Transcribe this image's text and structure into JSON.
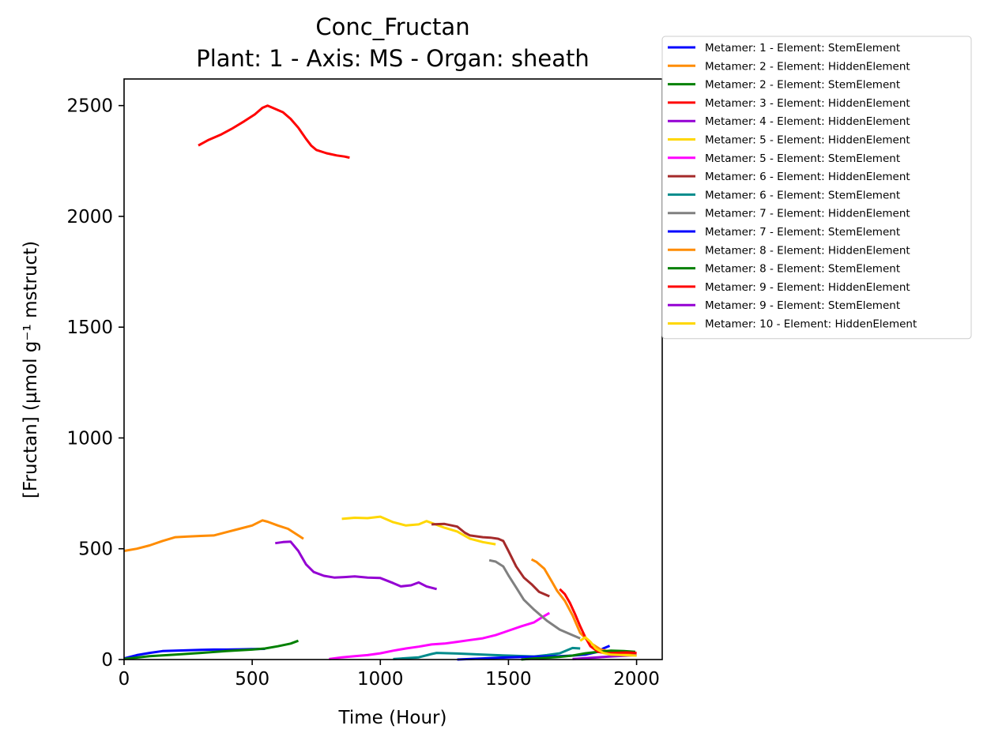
{
  "chart_data": {
    "type": "line",
    "title": "Conc_Fructan",
    "subtitle": "Plant: 1 - Axis: MS - Organ: sheath",
    "xlabel": "Time (Hour)",
    "ylabel": "[Fructan] (µmol g⁻¹ mstruct)",
    "xlim": [
      0,
      2100
    ],
    "ylim": [
      0,
      2620
    ],
    "xticks": [
      0,
      500,
      1000,
      1500,
      2000
    ],
    "yticks": [
      0,
      500,
      1000,
      1500,
      2000,
      2500
    ],
    "grid": false,
    "legend_position": "outside-top-right",
    "series": [
      {
        "name": "Metamer: 1 - Element: StemElement",
        "color": "#0000ff",
        "x": [
          0,
          50,
          100,
          150,
          200,
          250,
          300,
          350,
          400,
          450,
          500,
          550
        ],
        "y": [
          5,
          20,
          30,
          38,
          40,
          42,
          44,
          45,
          45,
          46,
          47,
          48
        ]
      },
      {
        "name": "Metamer: 2 - Element: HiddenElement",
        "color": "#ff8c00",
        "x": [
          0,
          50,
          100,
          150,
          200,
          250,
          300,
          350,
          400,
          450,
          500,
          540,
          560,
          600,
          640,
          680,
          700
        ],
        "y": [
          490,
          500,
          515,
          535,
          552,
          555,
          558,
          560,
          575,
          590,
          605,
          628,
          622,
          605,
          590,
          560,
          545
        ]
      },
      {
        "name": "Metamer: 2 - Element: StemElement",
        "color": "#008000",
        "x": [
          0,
          100,
          200,
          300,
          400,
          500,
          550,
          600,
          650,
          680
        ],
        "y": [
          3,
          15,
          22,
          30,
          38,
          45,
          50,
          60,
          72,
          85
        ]
      },
      {
        "name": "Metamer: 3 - Element: HiddenElement",
        "color": "#ff0000",
        "x": [
          290,
          330,
          380,
          420,
          470,
          510,
          540,
          560,
          580,
          620,
          650,
          680,
          710,
          730,
          750,
          790,
          830,
          860,
          880
        ],
        "y": [
          2320,
          2345,
          2370,
          2395,
          2430,
          2460,
          2490,
          2500,
          2490,
          2470,
          2440,
          2400,
          2350,
          2320,
          2300,
          2285,
          2275,
          2270,
          2265
        ]
      },
      {
        "name": "Metamer: 4 - Element: HiddenElement",
        "color": "#9400d3",
        "x": [
          590,
          620,
          650,
          680,
          710,
          740,
          780,
          820,
          860,
          900,
          950,
          1000,
          1050,
          1080,
          1120,
          1150,
          1180,
          1220
        ],
        "y": [
          525,
          530,
          532,
          490,
          430,
          395,
          378,
          370,
          372,
          375,
          370,
          368,
          345,
          330,
          335,
          348,
          330,
          318
        ]
      },
      {
        "name": "Metamer: 5 - Element: HiddenElement",
        "color": "#ffd700",
        "x": [
          850,
          900,
          950,
          1000,
          1050,
          1100,
          1150,
          1180,
          1250,
          1300,
          1350,
          1400,
          1450
        ],
        "y": [
          635,
          640,
          638,
          645,
          620,
          605,
          610,
          625,
          595,
          578,
          545,
          530,
          520
        ]
      },
      {
        "name": "Metamer: 5 - Element: StemElement",
        "color": "#ff00ff",
        "x": [
          800,
          850,
          900,
          950,
          1000,
          1050,
          1100,
          1150,
          1200,
          1250,
          1300,
          1350,
          1400,
          1450,
          1500,
          1550,
          1600,
          1630,
          1660
        ],
        "y": [
          2,
          10,
          15,
          20,
          28,
          40,
          50,
          58,
          68,
          72,
          80,
          88,
          96,
          110,
          130,
          150,
          168,
          190,
          210
        ]
      },
      {
        "name": "Metamer: 6 - Element: HiddenElement",
        "color": "#a52a2a",
        "x": [
          1200,
          1250,
          1300,
          1330,
          1350,
          1400,
          1430,
          1460,
          1480,
          1500,
          1530,
          1560,
          1590,
          1620,
          1660
        ],
        "y": [
          610,
          612,
          600,
          572,
          560,
          552,
          550,
          545,
          535,
          490,
          420,
          370,
          340,
          305,
          285
        ]
      },
      {
        "name": "Metamer: 6 - Element: StemElement",
        "color": "#008b8b",
        "x": [
          1050,
          1150,
          1200,
          1220,
          1300,
          1400,
          1500,
          1600,
          1650,
          1700,
          1750,
          1780
        ],
        "y": [
          2,
          10,
          25,
          30,
          27,
          22,
          18,
          14,
          20,
          28,
          52,
          50
        ]
      },
      {
        "name": "Metamer: 7 - Element: HiddenElement",
        "color": "#808080",
        "x": [
          1425,
          1450,
          1480,
          1500,
          1530,
          1560,
          1600,
          1650,
          1700,
          1750,
          1780
        ],
        "y": [
          448,
          442,
          420,
          380,
          325,
          270,
          225,
          175,
          135,
          110,
          95
        ]
      },
      {
        "name": "Metamer: 7 - Element: StemElement",
        "color": "#0000ff",
        "x": [
          1300,
          1400,
          1500,
          1600,
          1700,
          1750,
          1800,
          1850,
          1870,
          1895
        ],
        "y": [
          0,
          5,
          10,
          13,
          15,
          18,
          22,
          35,
          50,
          62
        ]
      },
      {
        "name": "Metamer: 8 - Element: HiddenElement",
        "color": "#ff8c00",
        "x": [
          1590,
          1610,
          1640,
          1670,
          1690,
          1720,
          1750,
          1780,
          1820,
          1860,
          1900,
          1950,
          2000
        ],
        "y": [
          452,
          440,
          410,
          350,
          310,
          265,
          200,
          120,
          75,
          45,
          35,
          28,
          25
        ]
      },
      {
        "name": "Metamer: 8 - Element: StemElement",
        "color": "#008000",
        "x": [
          1550,
          1600,
          1650,
          1700,
          1750,
          1800,
          1850,
          1900,
          1950,
          1995
        ],
        "y": [
          0,
          5,
          8,
          12,
          18,
          28,
          35,
          40,
          38,
          35
        ]
      },
      {
        "name": "Metamer: 9 - Element: HiddenElement",
        "color": "#ff0000",
        "x": [
          1700,
          1720,
          1740,
          1760,
          1780,
          1800,
          1820,
          1850,
          1880,
          1920,
          1960,
          2000
        ],
        "y": [
          318,
          295,
          255,
          205,
          150,
          100,
          60,
          35,
          28,
          30,
          32,
          30
        ]
      },
      {
        "name": "Metamer: 9 - Element: StemElement",
        "color": "#9400d3",
        "x": [
          1750,
          1800,
          1850,
          1900,
          1950,
          2000
        ],
        "y": [
          2,
          6,
          10,
          14,
          17,
          20
        ]
      },
      {
        "name": "Metamer: 10 - Element: HiddenElement",
        "color": "#ffd700",
        "x": [
          1780,
          1800,
          1820,
          1840,
          1870,
          1900,
          1950,
          2000
        ],
        "y": [
          85,
          100,
          80,
          50,
          30,
          22,
          20,
          18
        ]
      }
    ]
  }
}
